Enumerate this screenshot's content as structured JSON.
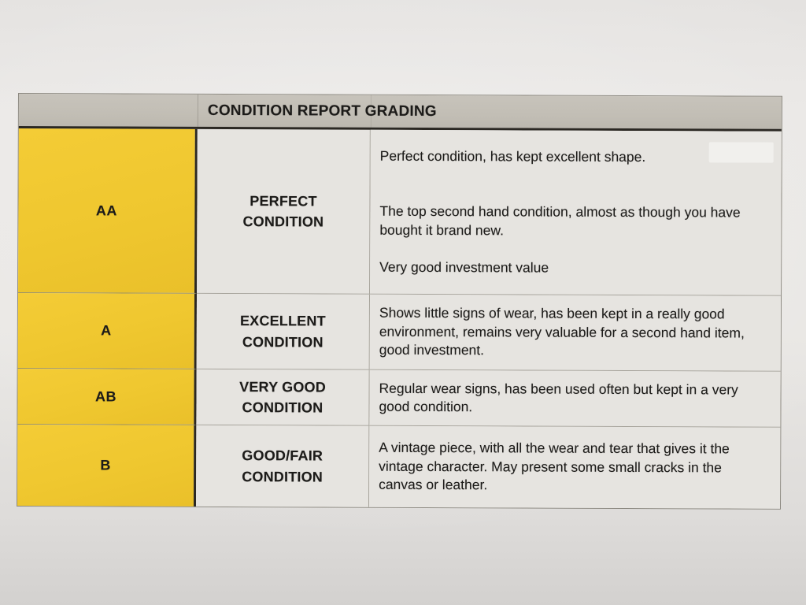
{
  "table": {
    "title": "CONDITION REPORT GRADING",
    "rows": [
      {
        "grade": "AA",
        "label": "PERFECT\nCONDITION",
        "description": "Perfect condition, has kept excellent shape.\n\n\nThe top second hand condition, almost as though you have bought it brand new.\n\nVery good investment value"
      },
      {
        "grade": "A",
        "label": "EXCELLENT\nCONDITION",
        "description": "Shows little signs of wear, has been kept in a really good environment, remains very valuable for a second hand item, good investment."
      },
      {
        "grade": "AB",
        "label": "VERY GOOD\nCONDITION",
        "description": "Regular wear signs, has been used often but kept in a very good condition."
      },
      {
        "grade": "B",
        "label": "GOOD/FAIR\nCONDITION",
        "description": "A vintage piece, with all the wear and tear that gives it the vintage character. May present some small cracks in the canvas or leather."
      }
    ],
    "colors": {
      "grade_column_yellow": "#EFC72F",
      "header_gray": "#C2BEB5",
      "cell_background": "#E6E4E0",
      "heavy_rule": "#2B2823",
      "paper_background": "#E7E5E2"
    }
  }
}
